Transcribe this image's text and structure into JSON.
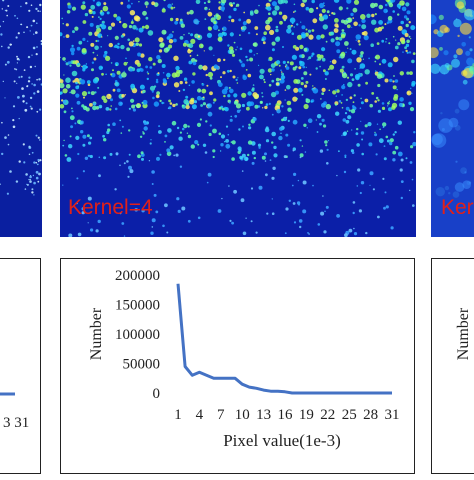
{
  "panels": {
    "left": {
      "label": ""
    },
    "center": {
      "label": "Kernel=4"
    },
    "right": {
      "label": "Ker"
    }
  },
  "chart_data": [
    {
      "type": "line",
      "title": "",
      "xlabel": "Pixel value(1e-3)",
      "ylabel": "Number",
      "x": [
        1,
        2,
        3,
        4,
        5,
        6,
        7,
        8,
        9,
        10,
        11,
        12,
        13,
        14,
        15,
        16,
        17,
        18,
        19,
        20,
        21,
        22,
        23,
        24,
        25,
        26,
        27,
        28,
        29,
        30,
        31
      ],
      "xticks": [
        1,
        4,
        7,
        10,
        13,
        16,
        19,
        22,
        25,
        28,
        31
      ],
      "series": [
        {
          "values": [
            185000,
            45000,
            30000,
            35000,
            30000,
            25000,
            25000,
            25000,
            25000,
            15000,
            10000,
            8000,
            5000,
            3000,
            3000,
            2000,
            0,
            0,
            0,
            0,
            0,
            0,
            0,
            0,
            0,
            0,
            0,
            0,
            0,
            0,
            0
          ]
        }
      ],
      "yticks": [
        0,
        50000,
        100000,
        150000,
        200000
      ],
      "ylim": [
        0,
        200000
      ],
      "color": "#4472c4",
      "grid": false
    }
  ],
  "partial_axes": {
    "left_xtick": "3 31",
    "right_ylabel": "Number"
  }
}
